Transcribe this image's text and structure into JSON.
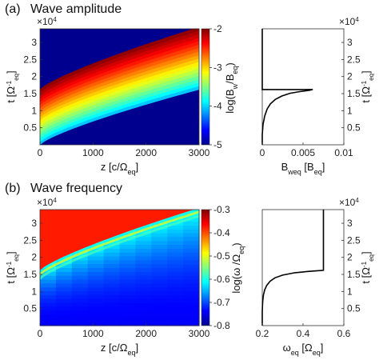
{
  "chart_data": [
    {
      "type": "heatmap",
      "panel_label": "(a)",
      "title": "Wave amplitude",
      "xlabel": "z [c/Ω",
      "xlabel_sub": "eq",
      "xlabel_tail": "]",
      "ylabel": "t [Ω",
      "ylabel_sup": "-1",
      "ylabel_sub": "eq",
      "ylabel_tail": "]",
      "y_exponent": "×10",
      "y_exponent_power": "4",
      "xticks": [
        "0",
        "1000",
        "2000",
        "3000"
      ],
      "yticks": [
        "0.5",
        "1",
        "1.5",
        "2",
        "2.5",
        "3"
      ],
      "xlim": [
        0,
        3000
      ],
      "ylim": [
        0,
        3.4
      ],
      "colorbar": {
        "label": "log(B",
        "label_sub1": "w",
        "label_mid": "/B",
        "label_sub2": "eq",
        "label_tail": ")",
        "ticks": [
          "-2",
          "-3",
          "-4",
          "-5"
        ],
        "range": [
          -5,
          -2
        ]
      },
      "band": {
        "lower_t_at_z0": 0.0,
        "lower_t_at_z3000": 1.62,
        "upper_t_at_z0": 1.62,
        "upper_t_at_z3000": 3.45
      },
      "background_value": -5
    },
    {
      "type": "line",
      "xlabel": "B",
      "xlabel_sub": "weq",
      "xlabel_tail": " [B",
      "xlabel_sub2": "eq",
      "xlabel_tail2": "]",
      "ylabel": "t [Ω",
      "ylabel_sup": "-1",
      "ylabel_sub": "eq",
      "ylabel_tail": "]",
      "y_exponent": "×10",
      "y_exponent_power": "4",
      "xticks": [
        "0",
        "0.005",
        "0.01"
      ],
      "yticks": [
        "0.5",
        "1",
        "1.5",
        "2",
        "2.5",
        "3"
      ],
      "xlim": [
        0,
        0.01
      ],
      "ylim": [
        0,
        3.4
      ],
      "x": [
        0,
        0,
        0.0001,
        0.0003,
        0.0006,
        0.001,
        0.0016,
        0.0024,
        0.0034,
        0.0046,
        0.0058,
        0.0062,
        0.0,
        0.0,
        0.0
      ],
      "y": [
        0,
        0.3,
        0.6,
        0.85,
        1.05,
        1.2,
        1.33,
        1.43,
        1.51,
        1.56,
        1.6,
        1.62,
        1.62,
        2.6,
        3.4
      ]
    },
    {
      "type": "heatmap",
      "panel_label": "(b)",
      "title": "Wave frequency",
      "xlabel": "z [c/Ω",
      "xlabel_sub": "eq",
      "xlabel_tail": "]",
      "ylabel": "t [Ω",
      "ylabel_sup": "-1",
      "ylabel_sub": "eq",
      "ylabel_tail": "]",
      "y_exponent": "×10",
      "y_exponent_power": "4",
      "xticks": [
        "0",
        "1000",
        "2000",
        "3000"
      ],
      "yticks": [
        "0.5",
        "1",
        "1.5",
        "2",
        "2.5",
        "3"
      ],
      "xlim": [
        0,
        3000
      ],
      "ylim": [
        0,
        3.4
      ],
      "colorbar": {
        "label": "log(ω /Ω",
        "label_sub": "eq",
        "label_tail": ")",
        "ticks": [
          "-0.3",
          "-0.4",
          "-0.5",
          "-0.6",
          "-0.7",
          "-0.8"
        ],
        "range": [
          -0.8,
          -0.3
        ]
      },
      "band": {
        "lower_t_at_z0": 1.62,
        "lower_t_at_z3000": 3.45
      },
      "upper_value": -0.3
    },
    {
      "type": "line",
      "xlabel": "ω",
      "xlabel_sub": "eq",
      "xlabel_tail": " [Ω",
      "xlabel_sub2": "eq",
      "xlabel_tail2": "]",
      "ylabel": "t [Ω",
      "ylabel_sup": "-1",
      "ylabel_sub": "eq",
      "ylabel_tail": "]",
      "y_exponent": "×10",
      "y_exponent_power": "4",
      "xticks": [
        "0.2",
        "0.4",
        "0.6"
      ],
      "yticks": [
        "0.5",
        "1",
        "1.5",
        "2",
        "2.5",
        "3"
      ],
      "xlim": [
        0.2,
        0.6
      ],
      "ylim": [
        0,
        3.4
      ],
      "x": [
        0.2,
        0.2,
        0.202,
        0.206,
        0.212,
        0.222,
        0.238,
        0.262,
        0.3,
        0.36,
        0.43,
        0.5,
        0.5,
        0.5
      ],
      "y": [
        0,
        0.4,
        0.7,
        0.9,
        1.05,
        1.18,
        1.3,
        1.4,
        1.48,
        1.55,
        1.59,
        1.62,
        2.6,
        3.4
      ]
    }
  ]
}
